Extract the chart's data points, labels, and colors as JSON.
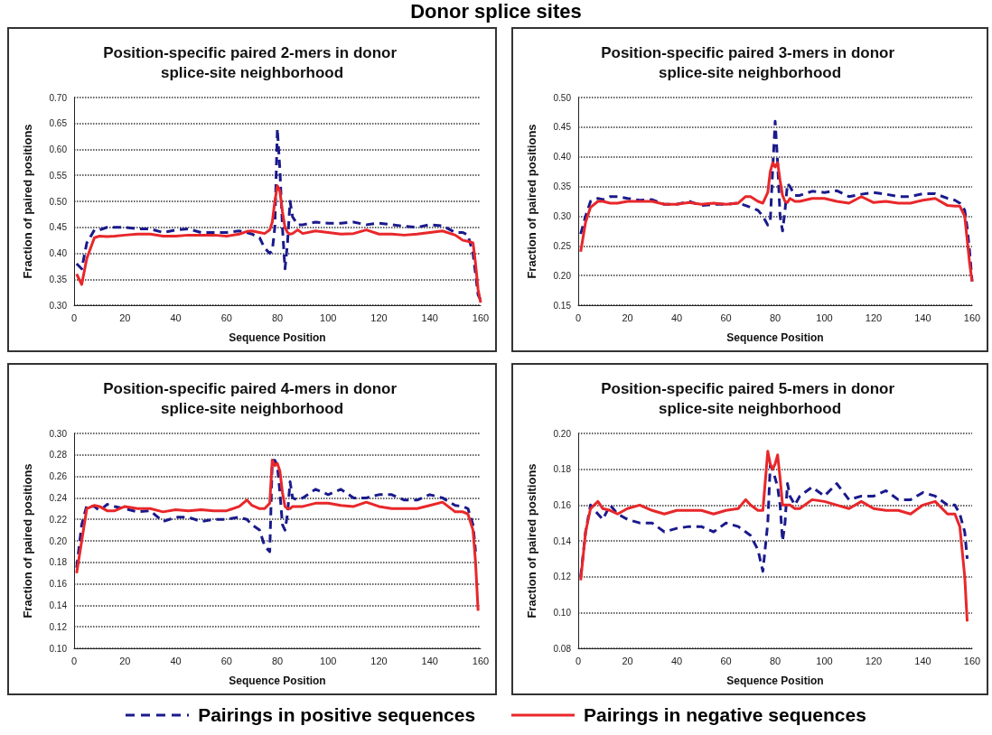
{
  "chart_data": [
    {
      "type": "line",
      "title": "Position-specific paired 2-mers in donor splice-site neighborhood",
      "xlabel": "Sequence Position",
      "ylabel": "Fraction of paired positions",
      "annotations": [
        "Donor splice sites"
      ],
      "legend": "bottom",
      "grid": "y",
      "marker": "none",
      "xlim": [
        0,
        160
      ],
      "xticks": [
        0,
        20,
        40,
        60,
        80,
        100,
        120,
        140,
        160
      ],
      "ylim": [
        0.3,
        0.7
      ],
      "yticks": [
        {
          "value": 0.3,
          "label": "0.30"
        },
        {
          "value": 0.35,
          "label": "0.35"
        },
        {
          "value": 0.4,
          "label": "0.40"
        },
        {
          "value": 0.45,
          "label": "0.45"
        },
        {
          "value": 0.5,
          "label": "0.50"
        },
        {
          "value": 0.55,
          "label": "0.55"
        },
        {
          "value": 0.6,
          "label": "0.60"
        },
        {
          "value": 0.65,
          "label": "0.65"
        },
        {
          "value": 0.7,
          "label": "0.70"
        }
      ],
      "x": [
        1,
        3,
        5,
        8,
        10,
        13,
        16,
        20,
        25,
        30,
        35,
        40,
        45,
        50,
        55,
        60,
        65,
        68,
        70,
        73,
        75,
        77,
        78,
        79,
        80,
        81,
        82,
        83,
        84,
        85,
        86,
        88,
        90,
        95,
        100,
        105,
        110,
        115,
        120,
        125,
        130,
        135,
        140,
        145,
        150,
        153,
        155,
        157,
        158,
        159,
        160
      ],
      "series": [
        {
          "name": "Pairings in positive sequences",
          "color": "#1a1a8c",
          "line_style": "dashed",
          "values": [
            0.38,
            0.37,
            0.42,
            0.445,
            0.445,
            0.45,
            0.45,
            0.45,
            0.447,
            0.447,
            0.44,
            0.445,
            0.447,
            0.44,
            0.44,
            0.44,
            0.443,
            0.44,
            0.437,
            0.43,
            0.41,
            0.4,
            0.405,
            0.45,
            0.64,
            0.56,
            0.45,
            0.37,
            0.42,
            0.5,
            0.47,
            0.455,
            0.455,
            0.46,
            0.458,
            0.458,
            0.46,
            0.455,
            0.458,
            0.455,
            0.452,
            0.45,
            0.455,
            0.453,
            0.44,
            0.44,
            0.435,
            0.4,
            0.36,
            0.32,
            0.31
          ]
        },
        {
          "name": "Pairings in negative sequences",
          "color": "#e8272a",
          "line_style": "solid",
          "values": [
            0.36,
            0.34,
            0.39,
            0.43,
            0.433,
            0.432,
            0.433,
            0.435,
            0.437,
            0.437,
            0.433,
            0.433,
            0.435,
            0.435,
            0.435,
            0.433,
            0.437,
            0.442,
            0.443,
            0.44,
            0.438,
            0.445,
            0.46,
            0.5,
            0.53,
            0.52,
            0.48,
            0.45,
            0.44,
            0.437,
            0.438,
            0.445,
            0.438,
            0.443,
            0.44,
            0.437,
            0.438,
            0.445,
            0.437,
            0.437,
            0.435,
            0.437,
            0.44,
            0.443,
            0.435,
            0.425,
            0.423,
            0.42,
            0.38,
            0.33,
            0.305
          ]
        }
      ]
    },
    {
      "type": "line",
      "title": "Position-specific paired 3-mers in donor splice-site neighborhood",
      "xlabel": "Sequence Position",
      "ylabel": "Fraction of paired positions",
      "grid": "y",
      "marker": "none",
      "xlim": [
        0,
        160
      ],
      "xticks": [
        0,
        20,
        40,
        60,
        80,
        100,
        120,
        140,
        160
      ],
      "ylim": [
        0.15,
        0.5
      ],
      "yticks": [
        {
          "value": 0.15,
          "label": "0.15"
        },
        {
          "value": 0.2,
          "label": "0.20"
        },
        {
          "value": 0.25,
          "label": "0.25"
        },
        {
          "value": 0.3,
          "label": "0.30"
        },
        {
          "value": 0.35,
          "label": "0.35"
        },
        {
          "value": 0.4,
          "label": "0.40"
        },
        {
          "value": 0.45,
          "label": "0.45"
        },
        {
          "value": 0.5,
          "label": "0.50"
        }
      ],
      "x": [
        1,
        3,
        5,
        8,
        10,
        13,
        16,
        20,
        25,
        30,
        35,
        40,
        45,
        50,
        55,
        60,
        65,
        68,
        70,
        73,
        75,
        77,
        78,
        79,
        80,
        81,
        82,
        83,
        84,
        85,
        86,
        88,
        90,
        95,
        100,
        105,
        110,
        115,
        120,
        125,
        130,
        135,
        140,
        145,
        150,
        153,
        155,
        157,
        158,
        159,
        160
      ],
      "series": [
        {
          "color": "#1a1a8c",
          "line_style": "dashed",
          "values": [
            0.27,
            0.3,
            0.325,
            0.33,
            0.328,
            0.333,
            0.333,
            0.33,
            0.327,
            0.328,
            0.32,
            0.32,
            0.325,
            0.318,
            0.32,
            0.32,
            0.322,
            0.318,
            0.315,
            0.31,
            0.3,
            0.285,
            0.29,
            0.38,
            0.46,
            0.39,
            0.3,
            0.275,
            0.31,
            0.355,
            0.35,
            0.335,
            0.335,
            0.342,
            0.34,
            0.343,
            0.333,
            0.337,
            0.34,
            0.337,
            0.333,
            0.333,
            0.338,
            0.338,
            0.33,
            0.327,
            0.322,
            0.31,
            0.28,
            0.24,
            0.19
          ]
        },
        {
          "color": "#e8272a",
          "line_style": "solid",
          "values": [
            0.24,
            0.29,
            0.315,
            0.325,
            0.325,
            0.322,
            0.322,
            0.325,
            0.325,
            0.325,
            0.32,
            0.32,
            0.323,
            0.32,
            0.322,
            0.32,
            0.322,
            0.333,
            0.333,
            0.325,
            0.322,
            0.34,
            0.375,
            0.39,
            0.383,
            0.39,
            0.36,
            0.335,
            0.325,
            0.323,
            0.33,
            0.325,
            0.325,
            0.33,
            0.33,
            0.325,
            0.322,
            0.333,
            0.323,
            0.325,
            0.322,
            0.322,
            0.327,
            0.33,
            0.318,
            0.317,
            0.317,
            0.3,
            0.26,
            0.22,
            0.19
          ]
        }
      ]
    },
    {
      "type": "line",
      "title": "Position-specific paired 4-mers in donor splice-site neighborhood",
      "xlabel": "Sequence Position",
      "ylabel": "Fraction of paired positions",
      "grid": "y",
      "marker": "none",
      "xlim": [
        0,
        160
      ],
      "xticks": [
        0,
        20,
        40,
        60,
        80,
        100,
        120,
        140,
        160
      ],
      "ylim": [
        0.1,
        0.3
      ],
      "yticks": [
        {
          "value": 0.1,
          "label": "0.10"
        },
        {
          "value": 0.12,
          "label": "0.12"
        },
        {
          "value": 0.14,
          "label": "0.14"
        },
        {
          "value": 0.16,
          "label": "0.16"
        },
        {
          "value": 0.18,
          "label": "0.18"
        },
        {
          "value": 0.2,
          "label": "0.20"
        },
        {
          "value": 0.22,
          "label": "0.22"
        },
        {
          "value": 0.24,
          "label": "0.24"
        },
        {
          "value": 0.26,
          "label": "0.26"
        },
        {
          "value": 0.28,
          "label": "0.28"
        },
        {
          "value": 0.3,
          "label": "0.30"
        }
      ],
      "x": [
        1,
        3,
        5,
        8,
        10,
        13,
        16,
        20,
        25,
        30,
        35,
        40,
        45,
        50,
        55,
        60,
        65,
        68,
        70,
        73,
        75,
        77,
        78,
        79,
        80,
        81,
        82,
        83,
        84,
        85,
        86,
        88,
        90,
        95,
        100,
        105,
        110,
        115,
        120,
        125,
        130,
        135,
        140,
        145,
        150,
        153,
        155,
        157,
        158,
        159
      ],
      "series": [
        {
          "color": "#1a1a8c",
          "line_style": "dashed",
          "values": [
            0.175,
            0.215,
            0.233,
            0.232,
            0.228,
            0.234,
            0.232,
            0.23,
            0.227,
            0.228,
            0.218,
            0.222,
            0.222,
            0.218,
            0.22,
            0.22,
            0.222,
            0.22,
            0.215,
            0.21,
            0.195,
            0.19,
            0.275,
            0.275,
            0.27,
            0.245,
            0.215,
            0.21,
            0.225,
            0.255,
            0.24,
            0.238,
            0.24,
            0.248,
            0.243,
            0.248,
            0.24,
            0.24,
            0.243,
            0.243,
            0.238,
            0.238,
            0.243,
            0.24,
            0.233,
            0.232,
            0.23,
            0.215,
            0.19,
            null
          ]
        },
        {
          "color": "#e8272a",
          "line_style": "solid",
          "values": [
            0.17,
            0.2,
            0.23,
            0.233,
            0.232,
            0.228,
            0.228,
            0.232,
            0.23,
            0.23,
            0.227,
            0.229,
            0.228,
            0.229,
            0.228,
            0.228,
            0.232,
            0.238,
            0.233,
            0.23,
            0.23,
            0.235,
            0.275,
            0.27,
            0.272,
            0.265,
            0.245,
            0.232,
            0.23,
            0.23,
            0.232,
            0.232,
            0.232,
            0.235,
            0.235,
            0.233,
            0.232,
            0.236,
            0.232,
            0.23,
            0.23,
            0.23,
            0.233,
            0.236,
            0.227,
            0.227,
            0.225,
            0.21,
            0.18,
            0.135
          ]
        }
      ]
    },
    {
      "type": "line",
      "title": "Position-specific paired 5-mers in donor splice-site neighborhood",
      "xlabel": "Sequence Position",
      "ylabel": "Fraction of paired positions",
      "grid": "y",
      "marker": "none",
      "xlim": [
        0,
        160
      ],
      "xticks": [
        0,
        20,
        40,
        60,
        80,
        100,
        120,
        140,
        160
      ],
      "ylim": [
        0.08,
        0.2
      ],
      "yticks": [
        {
          "value": 0.08,
          "label": "0.08"
        },
        {
          "value": 0.1,
          "label": "0.10"
        },
        {
          "value": 0.12,
          "label": "0.12"
        },
        {
          "value": 0.14,
          "label": "0.14"
        },
        {
          "value": 0.16,
          "label": "0.16"
        },
        {
          "value": 0.18,
          "label": "0.18"
        },
        {
          "value": 0.2,
          "label": "0.20"
        }
      ],
      "x": [
        1,
        3,
        5,
        8,
        10,
        13,
        16,
        20,
        25,
        30,
        35,
        40,
        45,
        50,
        55,
        60,
        65,
        68,
        70,
        73,
        75,
        77,
        78,
        79,
        80,
        81,
        82,
        83,
        84,
        85,
        86,
        88,
        90,
        95,
        100,
        105,
        110,
        115,
        120,
        125,
        130,
        135,
        140,
        145,
        150,
        153,
        155,
        157,
        158
      ],
      "series": [
        {
          "color": "#1a1a8c",
          "line_style": "dashed",
          "values": [
            0.12,
            0.145,
            0.16,
            0.155,
            0.152,
            0.16,
            0.155,
            0.152,
            0.15,
            0.15,
            0.145,
            0.147,
            0.148,
            0.148,
            0.145,
            0.15,
            0.148,
            0.145,
            0.143,
            0.135,
            0.123,
            0.15,
            0.182,
            0.18,
            0.175,
            0.17,
            0.16,
            0.14,
            0.15,
            0.172,
            0.165,
            0.16,
            0.165,
            0.17,
            0.165,
            0.172,
            0.163,
            0.165,
            0.165,
            0.168,
            0.163,
            0.163,
            0.167,
            0.165,
            0.16,
            0.16,
            0.155,
            0.145,
            0.13
          ]
        },
        {
          "color": "#e8272a",
          "line_style": "solid",
          "values": [
            0.118,
            0.145,
            0.158,
            0.162,
            0.158,
            0.157,
            0.155,
            0.158,
            0.16,
            0.157,
            0.155,
            0.157,
            0.157,
            0.157,
            0.155,
            0.157,
            0.158,
            0.163,
            0.16,
            0.157,
            0.157,
            0.19,
            0.183,
            0.18,
            0.183,
            0.188,
            0.175,
            0.16,
            0.16,
            0.16,
            0.16,
            0.158,
            0.158,
            0.163,
            0.162,
            0.16,
            0.158,
            0.162,
            0.158,
            0.157,
            0.157,
            0.155,
            0.16,
            0.162,
            0.155,
            0.155,
            0.148,
            0.12,
            0.095
          ]
        }
      ]
    }
  ]
}
